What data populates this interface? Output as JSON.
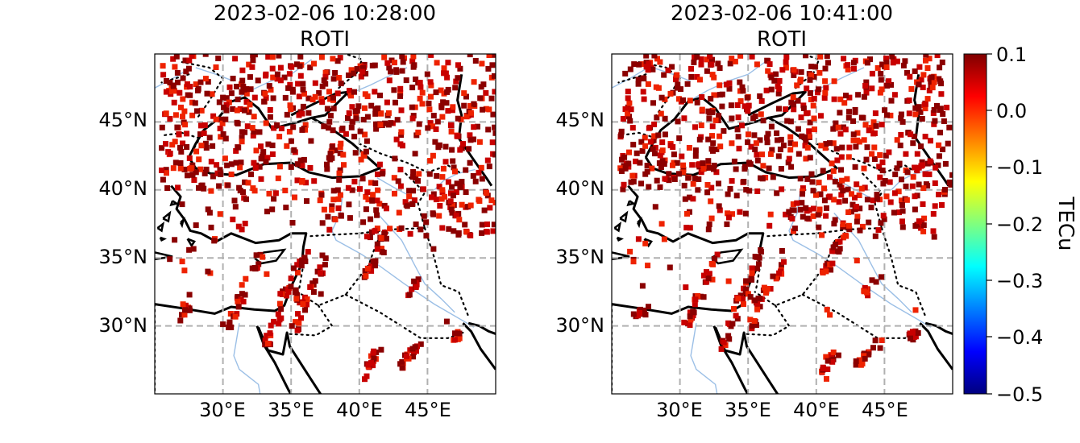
{
  "figure": {
    "panels": [
      {
        "title_time": "2023-02-06 10:28:00",
        "title_var": "ROTI",
        "seed": 11,
        "lat_ticks": [
          "45°N",
          "40°N",
          "35°N",
          "30°N"
        ],
        "lon_ticks": [
          "30°E",
          "35°E",
          "40°E",
          "45°E"
        ]
      },
      {
        "title_time": "2023-02-06 10:41:00",
        "title_var": "ROTI",
        "seed": 29,
        "lat_ticks": [
          "45°N",
          "40°N",
          "35°N",
          "30°N"
        ],
        "lon_ticks": [
          "30°E",
          "35°E",
          "40°E",
          "45°E"
        ]
      }
    ],
    "colorbar": {
      "label": "TECu",
      "ticks": [
        "0.1",
        "0.0",
        "−0.1",
        "−0.2",
        "−0.3",
        "−0.4",
        "−0.5"
      ],
      "colormap": "jet",
      "vmin": -0.5,
      "vmax": 0.1
    },
    "map_extent": {
      "lon_min": 25,
      "lon_max": 50,
      "lat_min": 25,
      "lat_max": 50
    },
    "colors": {
      "coast": "#000000",
      "rivers": "#9bbfe6",
      "grid": "#b0b0b0",
      "marker_dark": "#8b0000",
      "marker_mid": "#c80000",
      "marker_bright": "#ee2200"
    }
  }
}
